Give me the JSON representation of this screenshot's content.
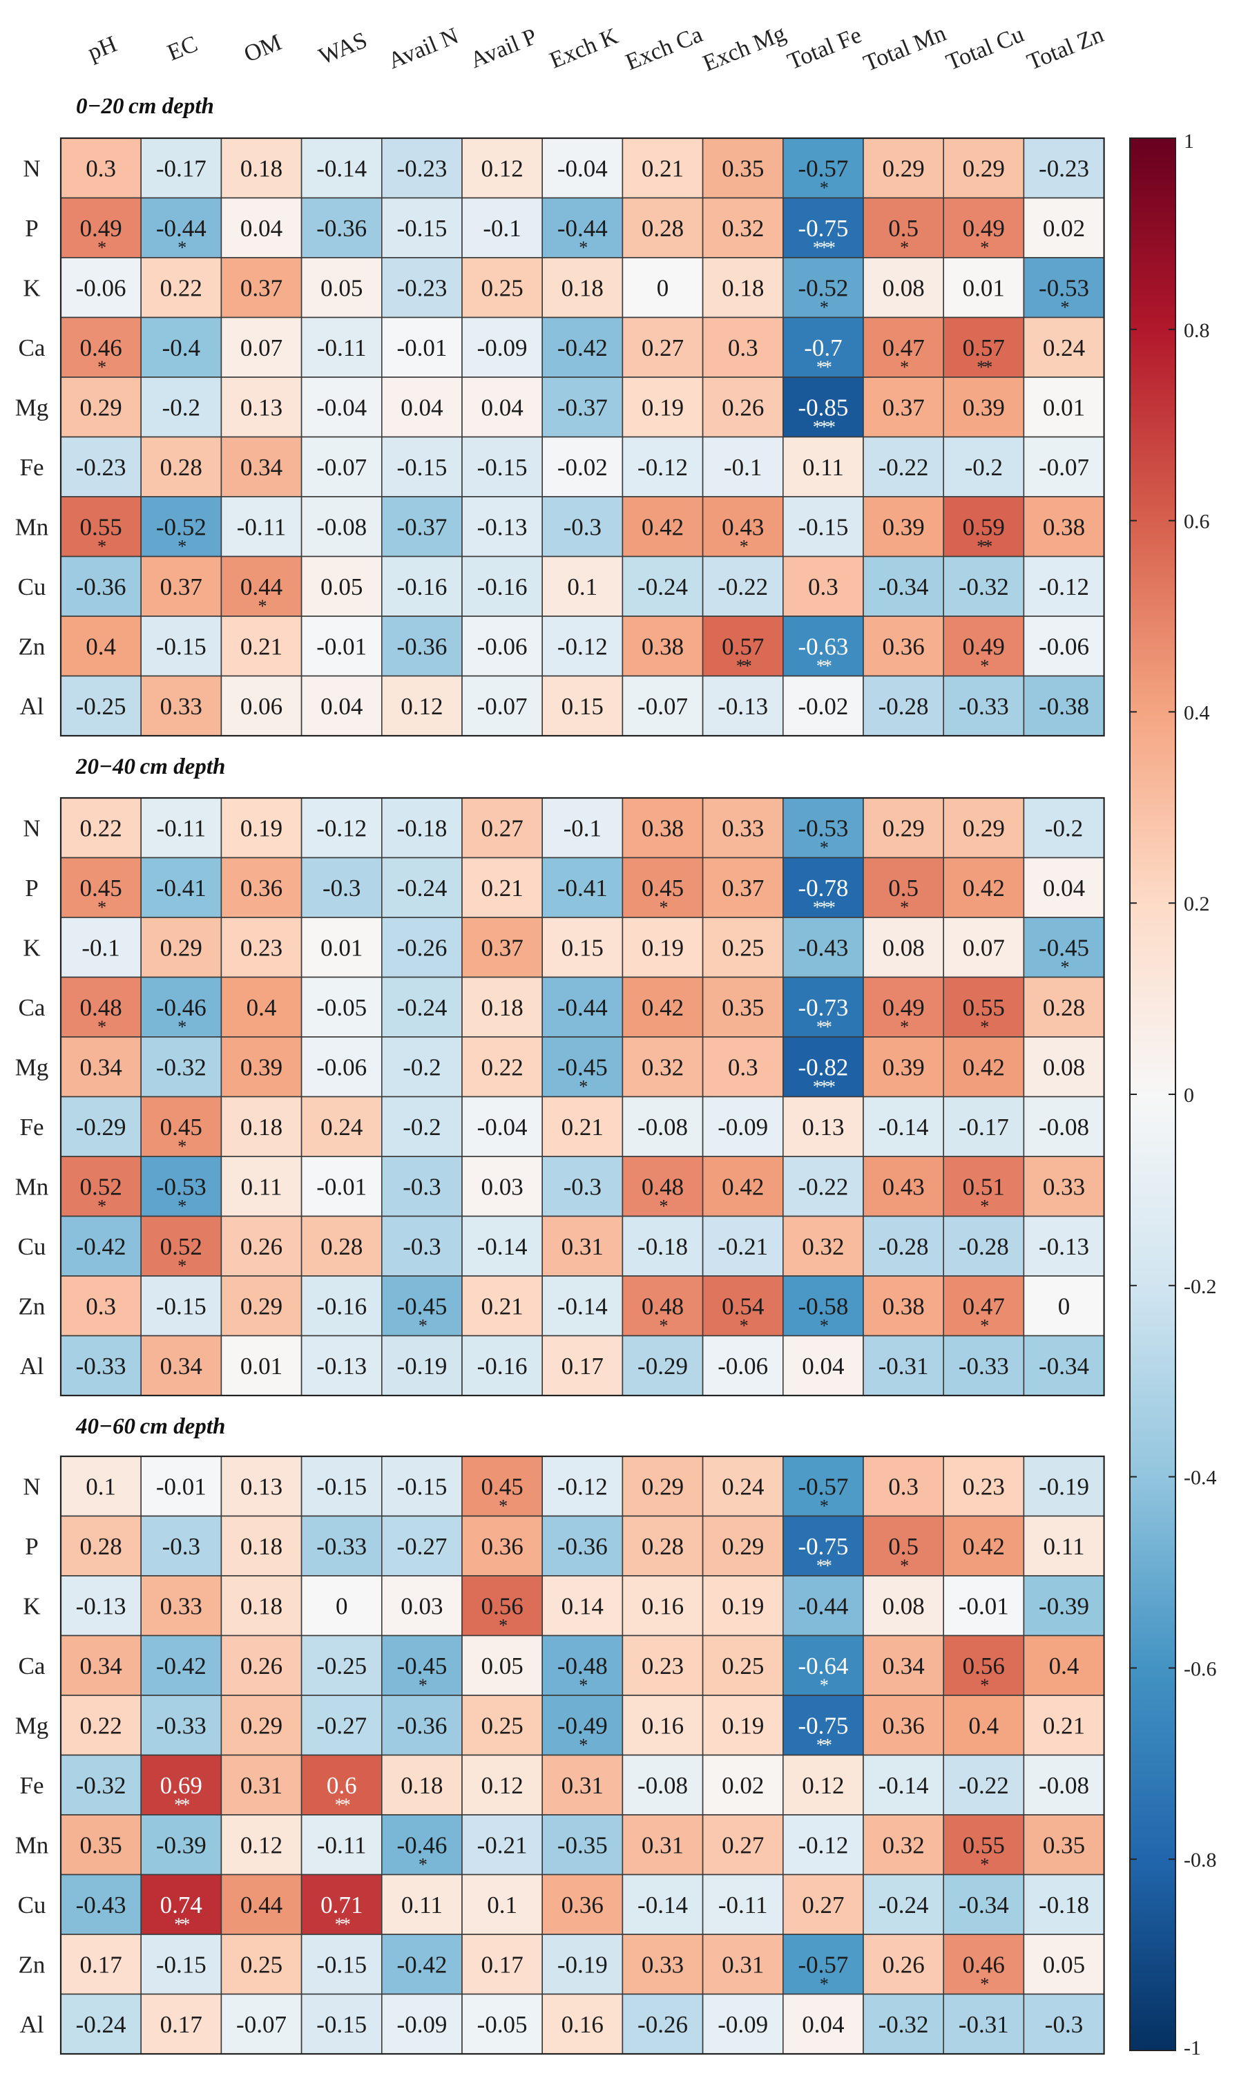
{
  "chart_data": {
    "type": "heatmap",
    "title": "",
    "columns": [
      "pH",
      "EC",
      "OM",
      "WAS",
      "Avail N",
      "Avail P",
      "Exch K",
      "Exch Ca",
      "Exch Mg",
      "Total Fe",
      "Total Mn",
      "Total Cu",
      "Total Zn"
    ],
    "rows": [
      "N",
      "P",
      "K",
      "Ca",
      "Mg",
      "Fe",
      "Mn",
      "Cu",
      "Zn",
      "Al"
    ],
    "value_range": [
      -1,
      1
    ],
    "colorbar": {
      "ticks": [
        1,
        0.8,
        0.6,
        0.4,
        0.2,
        0,
        -0.2,
        -0.4,
        -0.6,
        -0.8,
        -1
      ],
      "tick_labels": [
        "1",
        "0.8",
        "0.6",
        "0.4",
        "0.2",
        "0",
        "-0.2",
        "-0.4",
        "-0.6",
        "-0.8",
        "-1"
      ],
      "palette": [
        "#053061",
        "#2166ac",
        "#4393c3",
        "#92c5de",
        "#d1e5f0",
        "#f7f7f7",
        "#fddbc7",
        "#f4a582",
        "#d6604d",
        "#b2182b",
        "#67001f"
      ]
    },
    "panels": [
      {
        "label": "0−20 cm depth",
        "values": [
          [
            0.3,
            -0.17,
            0.18,
            -0.14,
            -0.23,
            0.12,
            -0.04,
            0.21,
            0.35,
            -0.57,
            0.29,
            0.29,
            -0.23
          ],
          [
            0.49,
            -0.44,
            0.04,
            -0.36,
            -0.15,
            -0.1,
            -0.44,
            0.28,
            0.32,
            -0.75,
            0.5,
            0.49,
            0.02
          ],
          [
            -0.06,
            0.22,
            0.37,
            0.05,
            -0.23,
            0.25,
            0.18,
            0,
            0.18,
            -0.52,
            0.08,
            0.01,
            -0.53
          ],
          [
            0.46,
            -0.4,
            0.07,
            -0.11,
            -0.01,
            -0.09,
            -0.42,
            0.27,
            0.3,
            -0.7,
            0.47,
            0.57,
            0.24
          ],
          [
            0.29,
            -0.2,
            0.13,
            -0.04,
            0.04,
            0.04,
            -0.37,
            0.19,
            0.26,
            -0.85,
            0.37,
            0.39,
            0.01
          ],
          [
            -0.23,
            0.28,
            0.34,
            -0.07,
            -0.15,
            -0.15,
            -0.02,
            -0.12,
            -0.1,
            0.11,
            -0.22,
            -0.2,
            -0.07
          ],
          [
            0.55,
            -0.52,
            -0.11,
            -0.08,
            -0.37,
            -0.13,
            -0.3,
            0.42,
            0.43,
            -0.15,
            0.39,
            0.59,
            0.38
          ],
          [
            -0.36,
            0.37,
            0.44,
            0.05,
            -0.16,
            -0.16,
            0.1,
            -0.24,
            -0.22,
            0.3,
            -0.34,
            -0.32,
            -0.12
          ],
          [
            0.4,
            -0.15,
            0.21,
            -0.01,
            -0.36,
            -0.06,
            -0.12,
            0.38,
            0.57,
            -0.63,
            0.36,
            0.49,
            -0.06
          ],
          [
            -0.25,
            0.33,
            0.06,
            0.04,
            0.12,
            -0.07,
            0.15,
            -0.07,
            -0.13,
            -0.02,
            -0.28,
            -0.33,
            -0.38
          ]
        ],
        "significance": [
          [
            "",
            "",
            "",
            "",
            "",
            "",
            "",
            "",
            "",
            "*",
            "",
            "",
            ""
          ],
          [
            "*",
            "*",
            "",
            "",
            "",
            "",
            "*",
            "",
            "",
            "***",
            "*",
            "*",
            ""
          ],
          [
            "",
            "",
            "",
            "",
            "",
            "",
            "",
            "",
            "",
            "*",
            "",
            "",
            "*"
          ],
          [
            "*",
            "",
            "",
            "",
            "",
            "",
            "",
            "",
            "",
            "**",
            "*",
            "**",
            ""
          ],
          [
            "",
            "",
            "",
            "",
            "",
            "",
            "",
            "",
            "",
            "***",
            "",
            "",
            ""
          ],
          [
            "",
            "",
            "",
            "",
            "",
            "",
            "",
            "",
            "",
            "",
            "",
            "",
            ""
          ],
          [
            "*",
            "*",
            "",
            "",
            "",
            "",
            "",
            "",
            "*",
            "",
            "",
            "**",
            ""
          ],
          [
            "",
            "",
            "*",
            "",
            "",
            "",
            "",
            "",
            "",
            "",
            "",
            "",
            ""
          ],
          [
            "",
            "",
            "",
            "",
            "",
            "",
            "",
            "",
            "**",
            "**",
            "",
            "*",
            ""
          ],
          [
            "",
            "",
            "",
            "",
            "",
            "",
            "",
            "",
            "",
            "",
            "",
            "",
            ""
          ]
        ]
      },
      {
        "label": "20−40 cm depth",
        "values": [
          [
            0.22,
            -0.11,
            0.19,
            -0.12,
            -0.18,
            0.27,
            -0.1,
            0.38,
            0.33,
            -0.53,
            0.29,
            0.29,
            -0.2
          ],
          [
            0.45,
            -0.41,
            0.36,
            -0.3,
            -0.24,
            0.21,
            -0.41,
            0.45,
            0.37,
            -0.78,
            0.5,
            0.42,
            0.04
          ],
          [
            -0.1,
            0.29,
            0.23,
            0.01,
            -0.26,
            0.37,
            0.15,
            0.19,
            0.25,
            -0.43,
            0.08,
            0.07,
            -0.45
          ],
          [
            0.48,
            -0.46,
            0.4,
            -0.05,
            -0.24,
            0.18,
            -0.44,
            0.42,
            0.35,
            -0.73,
            0.49,
            0.55,
            0.28
          ],
          [
            0.34,
            -0.32,
            0.39,
            -0.06,
            -0.2,
            0.22,
            -0.45,
            0.32,
            0.3,
            -0.82,
            0.39,
            0.42,
            0.08
          ],
          [
            -0.29,
            0.45,
            0.18,
            0.24,
            -0.2,
            -0.04,
            0.21,
            -0.08,
            -0.09,
            0.13,
            -0.14,
            -0.17,
            -0.08
          ],
          [
            0.52,
            -0.53,
            0.11,
            -0.01,
            -0.3,
            0.03,
            -0.3,
            0.48,
            0.42,
            -0.22,
            0.43,
            0.51,
            0.33
          ],
          [
            -0.42,
            0.52,
            0.26,
            0.28,
            -0.3,
            -0.14,
            0.31,
            -0.18,
            -0.21,
            0.32,
            -0.28,
            -0.28,
            -0.13
          ],
          [
            0.3,
            -0.15,
            0.29,
            -0.16,
            -0.45,
            0.21,
            -0.14,
            0.48,
            0.54,
            -0.58,
            0.38,
            0.47,
            0
          ],
          [
            -0.33,
            0.34,
            0.01,
            -0.13,
            -0.19,
            -0.16,
            0.17,
            -0.29,
            -0.06,
            0.04,
            -0.31,
            -0.33,
            -0.34
          ]
        ],
        "significance": [
          [
            "",
            "",
            "",
            "",
            "",
            "",
            "",
            "",
            "",
            "*",
            "",
            "",
            ""
          ],
          [
            "*",
            "",
            "",
            "",
            "",
            "",
            "",
            "*",
            "",
            "***",
            "*",
            "",
            ""
          ],
          [
            "",
            "",
            "",
            "",
            "",
            "",
            "",
            "",
            "",
            "",
            "",
            "",
            "*"
          ],
          [
            "*",
            "*",
            "",
            "",
            "",
            "",
            "",
            "",
            "",
            "**",
            "*",
            "*",
            ""
          ],
          [
            "",
            "",
            "",
            "",
            "",
            "",
            "*",
            "",
            "",
            "***",
            "",
            "",
            ""
          ],
          [
            "",
            "*",
            "",
            "",
            "",
            "",
            "",
            "",
            "",
            "",
            "",
            "",
            ""
          ],
          [
            "*",
            "*",
            "",
            "",
            "",
            "",
            "",
            "*",
            "",
            "",
            "",
            "*",
            ""
          ],
          [
            "",
            "*",
            "",
            "",
            "",
            "",
            "",
            "",
            "",
            "",
            "",
            "",
            ""
          ],
          [
            "",
            "",
            "",
            "",
            "*",
            "",
            "",
            "*",
            "*",
            "*",
            "",
            "*",
            ""
          ],
          [
            "",
            "",
            "",
            "",
            "",
            "",
            "",
            "",
            "",
            "",
            "",
            "",
            ""
          ]
        ]
      },
      {
        "label": "40−60 cm depth",
        "values": [
          [
            0.1,
            -0.01,
            0.13,
            -0.15,
            -0.15,
            0.45,
            -0.12,
            0.29,
            0.24,
            -0.57,
            0.3,
            0.23,
            -0.19
          ],
          [
            0.28,
            -0.3,
            0.18,
            -0.33,
            -0.27,
            0.36,
            -0.36,
            0.28,
            0.29,
            -0.75,
            0.5,
            0.42,
            0.11
          ],
          [
            -0.13,
            0.33,
            0.18,
            0,
            0.03,
            0.56,
            0.14,
            0.16,
            0.19,
            -0.44,
            0.08,
            -0.01,
            -0.39
          ],
          [
            0.34,
            -0.42,
            0.26,
            -0.25,
            -0.45,
            0.05,
            -0.48,
            0.23,
            0.25,
            -0.64,
            0.34,
            0.56,
            0.4
          ],
          [
            0.22,
            -0.33,
            0.29,
            -0.27,
            -0.36,
            0.25,
            -0.49,
            0.16,
            0.19,
            -0.75,
            0.36,
            0.4,
            0.21
          ],
          [
            -0.32,
            0.69,
            0.31,
            0.6,
            0.18,
            0.12,
            0.31,
            -0.08,
            0.02,
            0.12,
            -0.14,
            -0.22,
            -0.08
          ],
          [
            0.35,
            -0.39,
            0.12,
            -0.11,
            -0.46,
            -0.21,
            -0.35,
            0.31,
            0.27,
            -0.12,
            0.32,
            0.55,
            0.35
          ],
          [
            -0.43,
            0.74,
            0.44,
            0.71,
            0.11,
            0.1,
            0.36,
            -0.14,
            -0.11,
            0.27,
            -0.24,
            -0.34,
            -0.18
          ],
          [
            0.17,
            -0.15,
            0.25,
            -0.15,
            -0.42,
            0.17,
            -0.19,
            0.33,
            0.31,
            -0.57,
            0.26,
            0.46,
            0.05
          ],
          [
            -0.24,
            0.17,
            -0.07,
            -0.15,
            -0.09,
            -0.05,
            0.16,
            -0.26,
            -0.09,
            0.04,
            -0.32,
            -0.31,
            -0.3
          ]
        ],
        "significance": [
          [
            "",
            "",
            "",
            "",
            "",
            "*",
            "",
            "",
            "",
            "*",
            "",
            "",
            ""
          ],
          [
            "",
            "",
            "",
            "",
            "",
            "",
            "",
            "",
            "",
            "**",
            "*",
            "",
            ""
          ],
          [
            "",
            "",
            "",
            "",
            "",
            "*",
            "",
            "",
            "",
            "",
            "",
            "",
            ""
          ],
          [
            "",
            "",
            "",
            "",
            "*",
            "",
            "*",
            "",
            "",
            "*",
            "",
            "*",
            ""
          ],
          [
            "",
            "",
            "",
            "",
            "",
            "",
            "*",
            "",
            "",
            "**",
            "",
            "",
            ""
          ],
          [
            "",
            "**",
            "",
            "**",
            "",
            "",
            "",
            "",
            "",
            "",
            "",
            "",
            ""
          ],
          [
            "",
            "",
            "",
            "",
            "*",
            "",
            "",
            "",
            "",
            "",
            "",
            "*",
            ""
          ],
          [
            "",
            "**",
            "",
            "**",
            "",
            "",
            "",
            "",
            "",
            "",
            "",
            "",
            ""
          ],
          [
            "",
            "",
            "",
            "",
            "",
            "",
            "",
            "",
            "",
            "*",
            "",
            "*",
            ""
          ],
          [
            "",
            "",
            "",
            "",
            "",
            "",
            "",
            "",
            "",
            "",
            "",
            "",
            ""
          ]
        ]
      }
    ]
  }
}
